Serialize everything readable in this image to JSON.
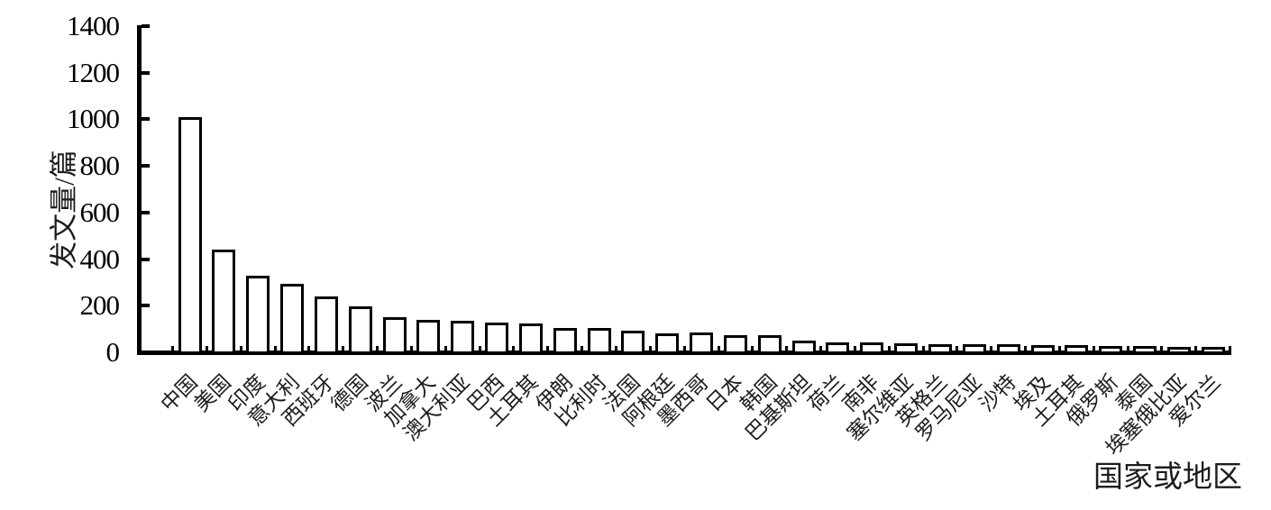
{
  "chart_data": {
    "type": "bar",
    "title": "",
    "ylabel": "发文量/篇",
    "xlabel": "国家或地区",
    "categories": [
      "中国",
      "美国",
      "印度",
      "意大利",
      "西班牙",
      "德国",
      "波兰",
      "加拿大",
      "澳大利亚",
      "巴西",
      "土耳其",
      "伊朗",
      "比利时",
      "法国",
      "阿根廷",
      "墨西哥",
      "日本",
      "韩国",
      "巴基斯坦",
      "荷兰",
      "南非",
      "塞尔维亚",
      "英格兰",
      "罗马尼亚",
      "沙特",
      "埃及",
      "土耳其",
      "俄罗斯",
      "泰国",
      "埃塞俄比亚",
      "爱尔兰"
    ],
    "values": [
      1010,
      440,
      327,
      293,
      240,
      196,
      150,
      141,
      134,
      126,
      123,
      105,
      103,
      92,
      83,
      86,
      73,
      75,
      50,
      43,
      42,
      38,
      36,
      34,
      33,
      30,
      29,
      27,
      26,
      25,
      25
    ],
    "yticks": [
      0,
      200,
      400,
      600,
      800,
      1000,
      1200,
      1400
    ],
    "ylim": [
      0,
      1400
    ],
    "legend": null,
    "grid": "off",
    "bar_fill": "#ffffff",
    "bar_border": "#000000",
    "axis_color": "#000000",
    "background": "#ffffff"
  }
}
